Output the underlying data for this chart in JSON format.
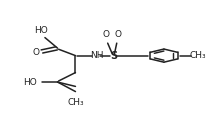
{
  "bg_color": "#ffffff",
  "line_color": "#222222",
  "line_width": 1.1,
  "font_size": 6.5,
  "figsize": [
    2.12,
    1.37
  ],
  "dpi": 100,
  "xlim": [
    0.0,
    1.0
  ],
  "ylim": [
    0.0,
    1.0
  ]
}
